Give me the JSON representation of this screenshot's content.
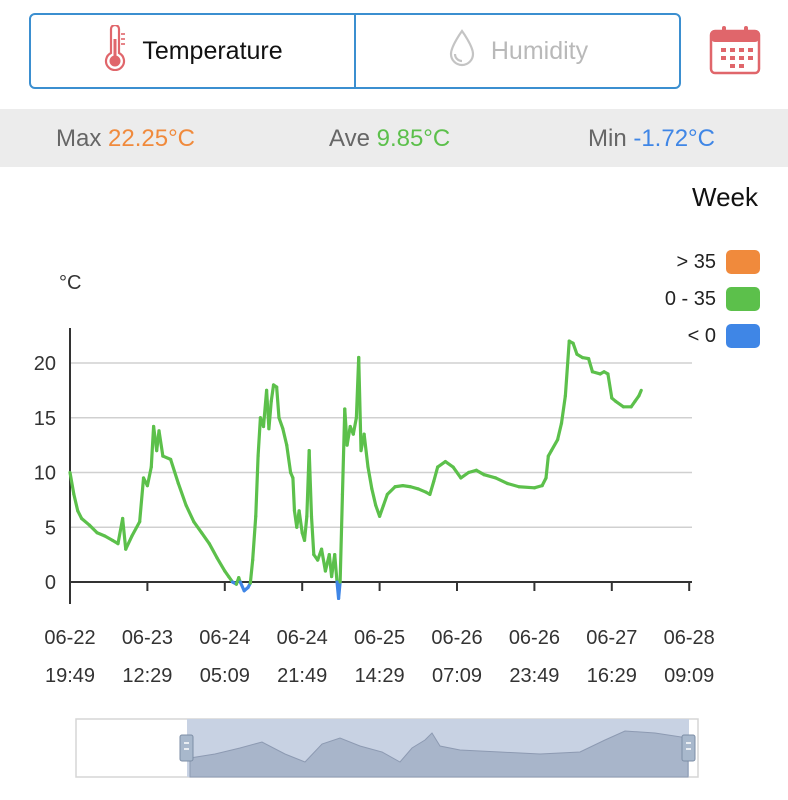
{
  "tabs": [
    {
      "label": "Temperature",
      "icon": "thermometer-icon",
      "active": true
    },
    {
      "label": "Humidity",
      "icon": "droplet-icon",
      "active": false
    }
  ],
  "calendar_icon": "calendar-icon",
  "stats": {
    "max_label": "Max",
    "max_value": "22.25°C",
    "max_color": "#f08a3c",
    "ave_label": "Ave",
    "ave_value": "9.85°C",
    "ave_color": "#5cc04b",
    "min_label": "Min",
    "min_value": "-1.72°C",
    "min_color": "#3f86e6"
  },
  "range_label": "Week",
  "legend": [
    {
      "label": "> 35",
      "color": "#f08a3c"
    },
    {
      "label": "0 - 35",
      "color": "#5cc04b"
    },
    {
      "label": "< 0",
      "color": "#3f86e6"
    }
  ],
  "chart_data": {
    "type": "line",
    "ylabel": "°C",
    "ylim": [
      -2,
      24
    ],
    "yticks": [
      0,
      5,
      10,
      15,
      20
    ],
    "grid": true,
    "xticks": [
      {
        "d": "06-22",
        "t": "19:49"
      },
      {
        "d": "06-23",
        "t": "12:29"
      },
      {
        "d": "06-24",
        "t": "05:09"
      },
      {
        "d": "06-24",
        "t": "21:49"
      },
      {
        "d": "06-25",
        "t": "14:29"
      },
      {
        "d": "06-26",
        "t": "07:09"
      },
      {
        "d": "06-26",
        "t": "23:49"
      },
      {
        "d": "06-27",
        "t": "16:29"
      },
      {
        "d": "06-28",
        "t": "09:09"
      }
    ],
    "series": [
      {
        "values_by_x_tick": [
          [
            0,
            10
          ],
          [
            0.05,
            8
          ],
          [
            0.1,
            6.5
          ],
          [
            0.15,
            5.8
          ],
          [
            0.25,
            5.2
          ],
          [
            0.35,
            4.5
          ],
          [
            0.45,
            4.2
          ],
          [
            0.55,
            3.8
          ],
          [
            0.62,
            3.5
          ],
          [
            0.68,
            5.8
          ],
          [
            0.72,
            3.0
          ],
          [
            0.8,
            4.2
          ],
          [
            0.9,
            5.5
          ],
          [
            0.95,
            9.5
          ],
          [
            1.0,
            8.8
          ],
          [
            1.05,
            10.5
          ],
          [
            1.08,
            14.2
          ],
          [
            1.12,
            12.0
          ],
          [
            1.15,
            13.8
          ],
          [
            1.2,
            11.5
          ],
          [
            1.3,
            11.2
          ],
          [
            1.4,
            9.0
          ],
          [
            1.5,
            7.0
          ],
          [
            1.6,
            5.5
          ],
          [
            1.7,
            4.5
          ],
          [
            1.8,
            3.5
          ],
          [
            1.9,
            2.2
          ],
          [
            2.0,
            1.0
          ],
          [
            2.05,
            0.5
          ],
          [
            2.1,
            0.0
          ],
          [
            2.15,
            -0.2
          ],
          [
            2.18,
            0.4
          ],
          [
            2.2,
            0.0
          ],
          [
            2.25,
            -0.8
          ],
          [
            2.3,
            -0.5
          ],
          [
            2.33,
            -0.1
          ],
          [
            2.36,
            2.0
          ],
          [
            2.4,
            6.0
          ],
          [
            2.43,
            11.5
          ],
          [
            2.46,
            15.0
          ],
          [
            2.5,
            14.2
          ],
          [
            2.54,
            17.5
          ],
          [
            2.57,
            14.0
          ],
          [
            2.6,
            16.5
          ],
          [
            2.63,
            18.0
          ],
          [
            2.67,
            17.8
          ],
          [
            2.7,
            15.0
          ],
          [
            2.75,
            14.0
          ],
          [
            2.8,
            12.5
          ],
          [
            2.85,
            10.0
          ],
          [
            2.88,
            9.5
          ],
          [
            2.9,
            6.5
          ],
          [
            2.93,
            5.0
          ],
          [
            2.96,
            6.5
          ],
          [
            3.0,
            4.5
          ],
          [
            3.03,
            3.8
          ],
          [
            3.06,
            6.0
          ],
          [
            3.09,
            12.0
          ],
          [
            3.12,
            6.0
          ],
          [
            3.15,
            2.5
          ],
          [
            3.2,
            2.0
          ],
          [
            3.25,
            3.0
          ],
          [
            3.3,
            1.0
          ],
          [
            3.35,
            2.5
          ],
          [
            3.38,
            0.5
          ],
          [
            3.42,
            2.5
          ],
          [
            3.45,
            0.0
          ],
          [
            3.47,
            -1.5
          ],
          [
            3.49,
            0.0
          ],
          [
            3.52,
            8.0
          ],
          [
            3.55,
            15.8
          ],
          [
            3.58,
            12.5
          ],
          [
            3.62,
            14.2
          ],
          [
            3.66,
            13.5
          ],
          [
            3.7,
            15.0
          ],
          [
            3.73,
            20.5
          ],
          [
            3.76,
            12.0
          ],
          [
            3.8,
            13.5
          ],
          [
            3.85,
            10.5
          ],
          [
            3.9,
            8.5
          ],
          [
            3.95,
            7.0
          ],
          [
            4.0,
            6.0
          ],
          [
            4.05,
            7.0
          ],
          [
            4.1,
            8.0
          ],
          [
            4.2,
            8.7
          ],
          [
            4.3,
            8.8
          ],
          [
            4.4,
            8.7
          ],
          [
            4.5,
            8.5
          ],
          [
            4.6,
            8.2
          ],
          [
            4.65,
            8.0
          ],
          [
            4.7,
            9.2
          ],
          [
            4.75,
            10.5
          ],
          [
            4.85,
            11.0
          ],
          [
            4.95,
            10.5
          ],
          [
            5.05,
            9.5
          ],
          [
            5.15,
            10.0
          ],
          [
            5.25,
            10.2
          ],
          [
            5.35,
            9.8
          ],
          [
            5.5,
            9.5
          ],
          [
            5.65,
            9.0
          ],
          [
            5.8,
            8.7
          ],
          [
            6.0,
            8.6
          ],
          [
            6.1,
            8.8
          ],
          [
            6.15,
            9.5
          ],
          [
            6.18,
            11.5
          ],
          [
            6.22,
            12.0
          ],
          [
            6.3,
            13.0
          ],
          [
            6.35,
            14.5
          ],
          [
            6.4,
            17.0
          ],
          [
            6.45,
            22.0
          ],
          [
            6.5,
            21.8
          ],
          [
            6.55,
            20.8
          ],
          [
            6.62,
            20.5
          ],
          [
            6.7,
            20.4
          ],
          [
            6.75,
            19.2
          ],
          [
            6.85,
            19.0
          ],
          [
            6.9,
            19.2
          ],
          [
            6.95,
            19.0
          ],
          [
            7.0,
            16.8
          ],
          [
            7.05,
            16.5
          ],
          [
            7.15,
            16.0
          ],
          [
            7.25,
            16.0
          ],
          [
            7.3,
            16.5
          ],
          [
            7.35,
            17.0
          ],
          [
            7.38,
            17.5
          ]
        ]
      }
    ]
  }
}
